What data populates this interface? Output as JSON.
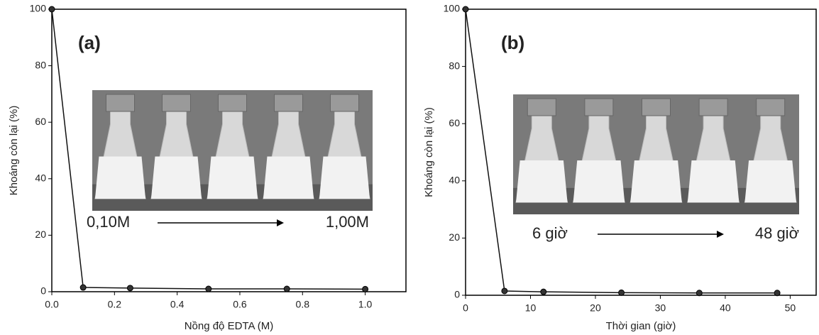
{
  "chart_data": [
    {
      "type": "line",
      "color": "#111111",
      "marker_color": "#333333",
      "x_label": "Nồng độ EDTA (M)",
      "y_label": "Khoáng còn lại (%)",
      "annotations": [
        "(a)",
        "0,10M",
        "1,00M"
      ],
      "x": [
        0,
        0.1,
        0.25,
        0.5,
        0.75,
        1.0
      ],
      "values": [
        100,
        1.5,
        1.3,
        1.0,
        1.0,
        0.9
      ],
      "xlim": [
        0,
        1.13
      ],
      "ylim": [
        0,
        100
      ],
      "xticks": [
        {
          "value": 0,
          "label": "0.0"
        },
        {
          "value": 0.2,
          "label": "0.2"
        },
        {
          "value": 0.4,
          "label": "0.4"
        },
        {
          "value": 0.6,
          "label": "0.6"
        },
        {
          "value": 0.8,
          "label": "0.8"
        },
        {
          "value": 1.0,
          "label": "1.0"
        }
      ],
      "yticks": [
        0,
        20,
        40,
        60,
        80,
        100
      ]
    },
    {
      "type": "line",
      "color": "#111111",
      "marker_color": "#333333",
      "x_label": "Thời gian (giờ)",
      "y_label": "Khoáng còn lại (%)",
      "annotations": [
        "(b)",
        "6 giờ",
        "48 giờ"
      ],
      "x": [
        0,
        6,
        12,
        24,
        36,
        48
      ],
      "values": [
        100,
        1.5,
        1.2,
        0.9,
        0.8,
        0.8
      ],
      "xlim": [
        0,
        54
      ],
      "ylim": [
        0,
        100
      ],
      "xticks": [
        0,
        10,
        20,
        30,
        40,
        50
      ],
      "yticks": [
        0,
        20,
        40,
        60,
        80,
        100
      ]
    }
  ]
}
